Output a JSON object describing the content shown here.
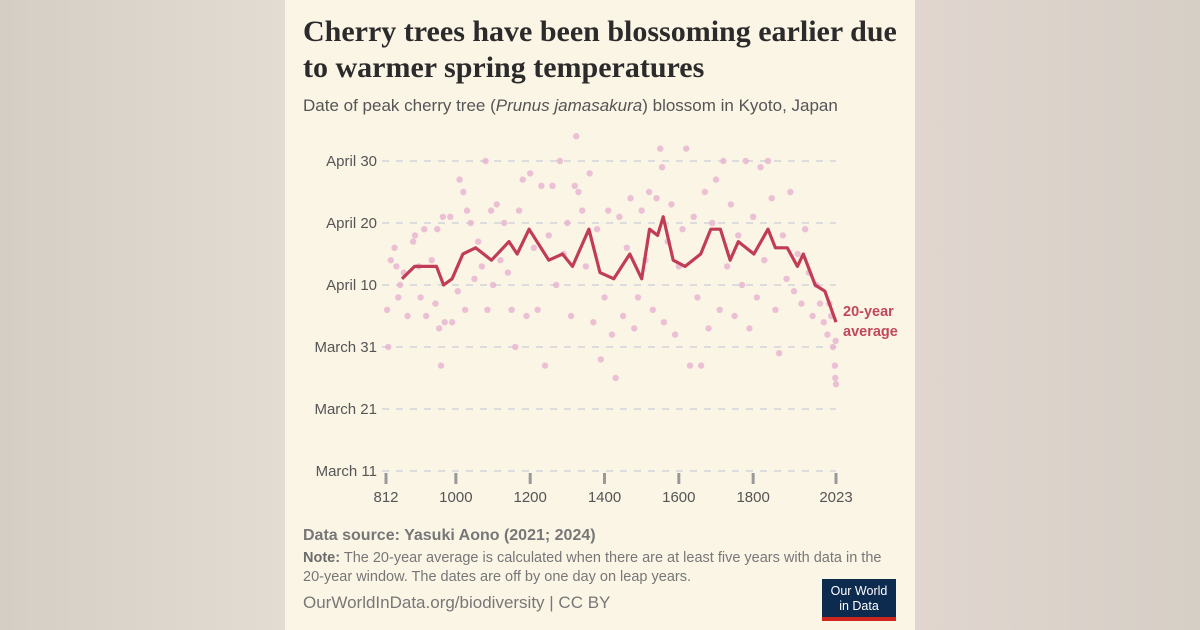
{
  "title": "Cherry trees have been blossoming earlier due to warmer spring temperatures",
  "subtitle": {
    "before": "Date of peak cherry tree (",
    "species": "Prunus jamasakura",
    "after": ") blossom in Kyoto, Japan"
  },
  "footer": {
    "source": "Data source: Yasuki Aono (2021; 2024)",
    "note_label": "Note:",
    "note": "The 20-year average is calculated when there are at least five years with data in the 20-year window. The dates are off by one day on leap years.",
    "url": "OurWorldInData.org/biodiversity | CC BY",
    "logo_text": "Our World in Data"
  },
  "colors": {
    "line": "#c13d55",
    "dots": "#e9b3d0",
    "background": "#fbf5e6",
    "logo": "#0d2a4f",
    "logo_accent": "#ce261e"
  },
  "chart_data": {
    "type": "scatter+line",
    "title": "Cherry trees have been blossoming earlier due to warmer spring temperatures",
    "xlabel": "",
    "ylabel": "",
    "xlim": [
      812,
      2023
    ],
    "ylim": [
      "03-11",
      "04-30"
    ],
    "x_ticks": [
      "812",
      "1000",
      "1200",
      "1400",
      "1600",
      "1800",
      "2023"
    ],
    "y_ticks": [
      {
        "value": "04-30",
        "label": "April 30"
      },
      {
        "value": "04-20",
        "label": "April 20"
      },
      {
        "value": "04-10",
        "label": "April 10"
      },
      {
        "value": "03-31",
        "label": "March 31"
      },
      {
        "value": "03-21",
        "label": "March 21"
      },
      {
        "value": "03-11",
        "label": "March 11"
      }
    ],
    "grid": "horizontal dashed",
    "series": [
      {
        "type": "scatter",
        "points": [
          [
            815,
            "04-06"
          ],
          [
            818,
            "03-31"
          ],
          [
            825,
            "04-14"
          ],
          [
            835,
            "04-16"
          ],
          [
            840,
            "04-13"
          ],
          [
            845,
            "04-08"
          ],
          [
            850,
            "04-10"
          ],
          [
            860,
            "04-12"
          ],
          [
            870,
            "04-05"
          ],
          [
            885,
            "04-17"
          ],
          [
            890,
            "04-18"
          ],
          [
            900,
            "04-13"
          ],
          [
            905,
            "04-08"
          ],
          [
            915,
            "04-19"
          ],
          [
            920,
            "04-05"
          ],
          [
            935,
            "04-14"
          ],
          [
            945,
            "04-07"
          ],
          [
            950,
            "04-19"
          ],
          [
            955,
            "04-03"
          ],
          [
            960,
            "03-28"
          ],
          [
            965,
            "04-21"
          ],
          [
            970,
            "04-04"
          ],
          [
            985,
            "04-21"
          ],
          [
            990,
            "04-04"
          ],
          [
            1005,
            "04-09"
          ],
          [
            1010,
            "04-27"
          ],
          [
            1020,
            "04-25"
          ],
          [
            1025,
            "04-06"
          ],
          [
            1030,
            "04-22"
          ],
          [
            1040,
            "04-20"
          ],
          [
            1050,
            "04-11"
          ],
          [
            1060,
            "04-17"
          ],
          [
            1070,
            "04-13"
          ],
          [
            1080,
            "04-30"
          ],
          [
            1085,
            "04-06"
          ],
          [
            1095,
            "04-22"
          ],
          [
            1100,
            "04-10"
          ],
          [
            1110,
            "04-23"
          ],
          [
            1120,
            "04-14"
          ],
          [
            1130,
            "04-20"
          ],
          [
            1140,
            "04-12"
          ],
          [
            1150,
            "04-06"
          ],
          [
            1160,
            "03-31"
          ],
          [
            1170,
            "04-22"
          ],
          [
            1180,
            "04-27"
          ],
          [
            1190,
            "04-05"
          ],
          [
            1200,
            "04-28"
          ],
          [
            1210,
            "04-16"
          ],
          [
            1220,
            "04-06"
          ],
          [
            1230,
            "04-26"
          ],
          [
            1240,
            "03-28"
          ],
          [
            1250,
            "04-18"
          ],
          [
            1260,
            "04-26"
          ],
          [
            1270,
            "04-10"
          ],
          [
            1280,
            "04-30"
          ],
          [
            1290,
            "04-15"
          ],
          [
            1300,
            "04-20"
          ],
          [
            1310,
            "04-05"
          ],
          [
            1320,
            "04-26"
          ],
          [
            1324,
            "05-04"
          ],
          [
            1330,
            "04-25"
          ],
          [
            1340,
            "04-22"
          ],
          [
            1350,
            "04-13"
          ],
          [
            1360,
            "04-28"
          ],
          [
            1370,
            "04-04"
          ],
          [
            1380,
            "04-19"
          ],
          [
            1390,
            "03-29"
          ],
          [
            1400,
            "04-08"
          ],
          [
            1410,
            "04-22"
          ],
          [
            1420,
            "04-02"
          ],
          [
            1430,
            "03-26"
          ],
          [
            1440,
            "04-21"
          ],
          [
            1450,
            "04-05"
          ],
          [
            1460,
            "04-16"
          ],
          [
            1470,
            "04-24"
          ],
          [
            1480,
            "04-03"
          ],
          [
            1490,
            "04-08"
          ],
          [
            1500,
            "04-22"
          ],
          [
            1510,
            "04-14"
          ],
          [
            1520,
            "04-25"
          ],
          [
            1530,
            "04-06"
          ],
          [
            1540,
            "04-24"
          ],
          [
            1550,
            "05-02"
          ],
          [
            1555,
            "04-29"
          ],
          [
            1560,
            "04-04"
          ],
          [
            1570,
            "04-17"
          ],
          [
            1580,
            "04-23"
          ],
          [
            1590,
            "04-02"
          ],
          [
            1600,
            "04-13"
          ],
          [
            1610,
            "04-19"
          ],
          [
            1620,
            "05-02"
          ],
          [
            1630,
            "03-28"
          ],
          [
            1640,
            "04-21"
          ],
          [
            1650,
            "04-08"
          ],
          [
            1660,
            "03-28"
          ],
          [
            1670,
            "04-25"
          ],
          [
            1680,
            "04-03"
          ],
          [
            1690,
            "04-20"
          ],
          [
            1700,
            "04-27"
          ],
          [
            1710,
            "04-06"
          ],
          [
            1720,
            "04-30"
          ],
          [
            1730,
            "04-13"
          ],
          [
            1740,
            "04-23"
          ],
          [
            1750,
            "04-05"
          ],
          [
            1760,
            "04-18"
          ],
          [
            1770,
            "04-10"
          ],
          [
            1780,
            "04-30"
          ],
          [
            1790,
            "04-03"
          ],
          [
            1800,
            "04-21"
          ],
          [
            1810,
            "04-08"
          ],
          [
            1820,
            "04-29"
          ],
          [
            1830,
            "04-14"
          ],
          [
            1840,
            "04-30"
          ],
          [
            1850,
            "04-24"
          ],
          [
            1860,
            "04-06"
          ],
          [
            1870,
            "03-30"
          ],
          [
            1880,
            "04-18"
          ],
          [
            1890,
            "04-11"
          ],
          [
            1900,
            "04-25"
          ],
          [
            1910,
            "04-09"
          ],
          [
            1920,
            "04-15"
          ],
          [
            1930,
            "04-07"
          ],
          [
            1940,
            "04-19"
          ],
          [
            1950,
            "04-12"
          ],
          [
            1960,
            "04-05"
          ],
          [
            1970,
            "04-10"
          ],
          [
            1980,
            "04-07"
          ],
          [
            1990,
            "04-04"
          ],
          [
            2000,
            "04-02"
          ],
          [
            2005,
            "04-07"
          ],
          [
            2010,
            "04-05"
          ],
          [
            2015,
            "03-31"
          ],
          [
            2020,
            "03-28"
          ],
          [
            2021,
            "03-26"
          ],
          [
            2022,
            "04-01"
          ],
          [
            2023,
            "03-25"
          ]
        ]
      },
      {
        "type": "line",
        "name": "20-year average",
        "points": [
          [
            855,
            "04-11"
          ],
          [
            889,
            "04-13"
          ],
          [
            948,
            "04-13"
          ],
          [
            967,
            "04-10"
          ],
          [
            990,
            "04-11"
          ],
          [
            1019,
            "04-15"
          ],
          [
            1053,
            "04-16"
          ],
          [
            1096,
            "04-14"
          ],
          [
            1143,
            "04-17"
          ],
          [
            1165,
            "04-15"
          ],
          [
            1197,
            "04-19"
          ],
          [
            1250,
            "04-14"
          ],
          [
            1287,
            "04-15"
          ],
          [
            1314,
            "04-13"
          ],
          [
            1358,
            "04-19"
          ],
          [
            1388,
            "04-12"
          ],
          [
            1425,
            "04-11"
          ],
          [
            1468,
            "04-15"
          ],
          [
            1500,
            "04-11"
          ],
          [
            1521,
            "04-19"
          ],
          [
            1543,
            "04-18"
          ],
          [
            1558,
            "04-21"
          ],
          [
            1585,
            "04-14"
          ],
          [
            1617,
            "04-13"
          ],
          [
            1659,
            "04-15"
          ],
          [
            1686,
            "04-19"
          ],
          [
            1712,
            "04-19"
          ],
          [
            1738,
            "04-14"
          ],
          [
            1760,
            "04-17"
          ],
          [
            1802,
            "04-15"
          ],
          [
            1840,
            "04-19"
          ],
          [
            1860,
            "04-16"
          ],
          [
            1892,
            "04-16"
          ],
          [
            1919,
            "04-13"
          ],
          [
            1935,
            "04-15"
          ],
          [
            1967,
            "04-10"
          ],
          [
            1993,
            "04-09"
          ],
          [
            2023,
            "04-04"
          ]
        ]
      }
    ],
    "series_label": [
      "20-year",
      "average"
    ]
  }
}
